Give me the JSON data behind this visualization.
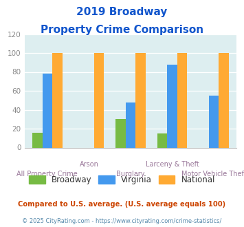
{
  "title_line1": "2019 Broadway",
  "title_line2": "Property Crime Comparison",
  "categories": [
    "All Property Crime",
    "Arson",
    "Burglary",
    "Larceny & Theft",
    "Motor Vehicle Theft"
  ],
  "broadway": [
    16,
    0,
    30,
    15,
    0
  ],
  "virginia": [
    78,
    0,
    48,
    88,
    55
  ],
  "national": [
    100,
    100,
    100,
    100,
    100
  ],
  "broadway_color": "#77bb44",
  "virginia_color": "#4499ee",
  "national_color": "#ffaa33",
  "bg_color": "#ddeef0",
  "title_color": "#1155cc",
  "xlabel_color": "#997799",
  "ylabel_color": "#888888",
  "ylim": [
    0,
    120
  ],
  "yticks": [
    0,
    20,
    40,
    60,
    80,
    100,
    120
  ],
  "legend_labels": [
    "Broadway",
    "Virginia",
    "National"
  ],
  "footer1": "Compared to U.S. average. (U.S. average equals 100)",
  "footer2": "© 2025 CityRating.com - https://www.cityrating.com/crime-statistics/",
  "footer1_color": "#cc4400",
  "footer2_color": "#5588aa",
  "tick_labels_top": [
    "",
    "Arson",
    "",
    "Larceny & Theft",
    ""
  ],
  "tick_labels_bot": [
    "All Property Crime",
    "",
    "Burglary",
    "",
    "Motor Vehicle Theft"
  ]
}
